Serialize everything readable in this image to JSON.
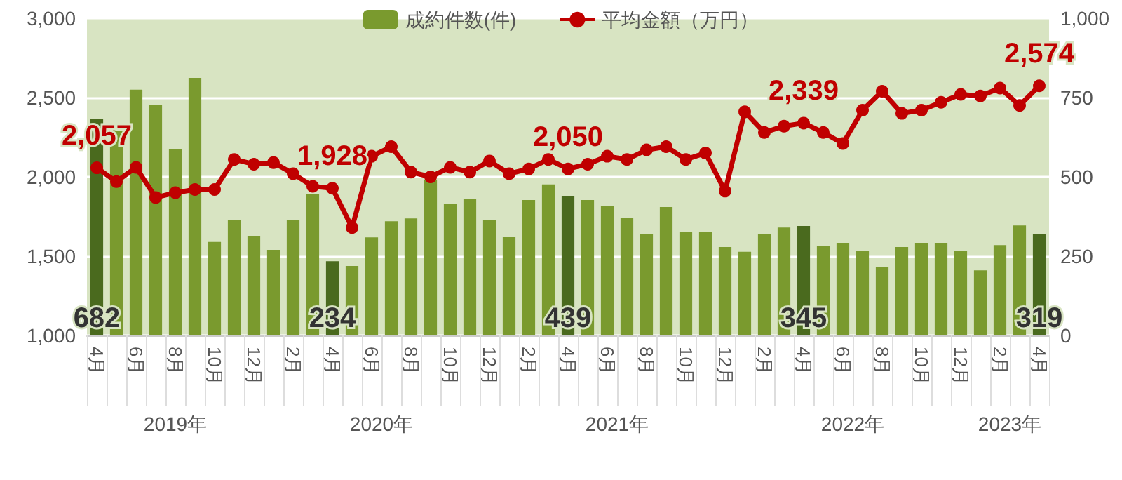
{
  "chart_data": {
    "type": "bar",
    "categories": [
      "4月",
      null,
      "6月",
      null,
      "8月",
      null,
      "10月",
      null,
      "12月",
      null,
      "2月",
      null,
      "4月",
      null,
      "6月",
      null,
      "8月",
      null,
      "10月",
      null,
      "12月",
      null,
      "2月",
      null,
      "4月",
      null,
      "6月",
      null,
      "8月",
      null,
      "10月",
      null,
      "12月",
      null,
      "2月",
      null,
      "4月",
      null,
      "6月",
      null,
      "8月",
      null,
      "10月",
      null,
      "12月",
      null,
      "2月",
      null,
      "4月"
    ],
    "series": [
      {
        "name": "成約件数(件)",
        "axis": "y2",
        "color": "#7a9a2e",
        "colors": [
          "#4a6a1e",
          "#7a9a2e",
          "#7a9a2e",
          "#7a9a2e",
          "#7a9a2e",
          "#7a9a2e",
          "#7a9a2e",
          "#7a9a2e",
          "#7a9a2e",
          "#7a9a2e",
          "#7a9a2e",
          "#7a9a2e",
          "#4a6a1e",
          "#7a9a2e",
          "#7a9a2e",
          "#7a9a2e",
          "#7a9a2e",
          "#7a9a2e",
          "#7a9a2e",
          "#7a9a2e",
          "#7a9a2e",
          "#7a9a2e",
          "#7a9a2e",
          "#7a9a2e",
          "#4a6a1e",
          "#7a9a2e",
          "#7a9a2e",
          "#7a9a2e",
          "#7a9a2e",
          "#7a9a2e",
          "#7a9a2e",
          "#7a9a2e",
          "#7a9a2e",
          "#7a9a2e",
          "#7a9a2e",
          "#7a9a2e",
          "#4a6a1e",
          "#7a9a2e",
          "#7a9a2e",
          "#7a9a2e",
          "#7a9a2e",
          "#7a9a2e",
          "#7a9a2e",
          "#7a9a2e",
          "#7a9a2e",
          "#7a9a2e",
          "#7a9a2e",
          "#7a9a2e",
          "#4a6a1e"
        ],
        "values": [
          682,
          660,
          775,
          728,
          588,
          812,
          295,
          365,
          312,
          270,
          363,
          445,
          234,
          219,
          309,
          360,
          369,
          490,
          414,
          431,
          365,
          310,
          427,
          476,
          439,
          427,
          408,
          371,
          321,
          405,
          325,
          325,
          279,
          264,
          321,
          340,
          345,
          281,
          292,
          266,
          217,
          279,
          292,
          292,
          267,
          205,
          285,
          347,
          319
        ],
        "value_labels": [
          "682",
          null,
          null,
          null,
          null,
          null,
          null,
          null,
          null,
          null,
          null,
          null,
          "234",
          null,
          null,
          null,
          null,
          null,
          null,
          null,
          null,
          null,
          null,
          null,
          "439",
          null,
          null,
          null,
          null,
          null,
          null,
          null,
          null,
          null,
          null,
          null,
          "345",
          null,
          null,
          null,
          null,
          null,
          null,
          null,
          null,
          null,
          null,
          null,
          "319"
        ]
      },
      {
        "name": "平均金額（万円）",
        "type": "line",
        "axis": "y",
        "color": "#c00000",
        "marker": "circle",
        "values": [
          2057,
          1970,
          2060,
          1870,
          1900,
          1920,
          1920,
          2110,
          2080,
          2090,
          2020,
          1940,
          1928,
          1680,
          2130,
          2190,
          2030,
          2000,
          2060,
          2030,
          2100,
          2020,
          2050,
          2110,
          2050,
          2080,
          2130,
          2110,
          2170,
          2190,
          2110,
          2150,
          1910,
          2410,
          2280,
          2320,
          2339,
          2280,
          2210,
          2420,
          2540,
          2400,
          2420,
          2470,
          2520,
          2510,
          2560,
          2450,
          2574
        ],
        "value_labels": [
          "2,057",
          null,
          null,
          null,
          null,
          null,
          null,
          null,
          null,
          null,
          null,
          null,
          "1,928",
          null,
          null,
          null,
          null,
          null,
          null,
          null,
          null,
          null,
          null,
          null,
          "2,050",
          null,
          null,
          null,
          null,
          null,
          null,
          null,
          null,
          null,
          null,
          null,
          "2,339",
          null,
          null,
          null,
          null,
          null,
          null,
          null,
          null,
          null,
          null,
          null,
          "2,574"
        ]
      }
    ],
    "ylim": [
      1000,
      3000
    ],
    "yticks": [
      {
        "value": 1000,
        "label": "1,000"
      },
      {
        "value": 1500,
        "label": "1,500"
      },
      {
        "value": 2000,
        "label": "2,000"
      },
      {
        "value": 2500,
        "label": "2,500"
      },
      {
        "value": 3000,
        "label": "3,000"
      }
    ],
    "y2lim": [
      0,
      1000
    ],
    "y2ticks": [
      0,
      250,
      500,
      750,
      {
        "value": 1000,
        "label": "1,000"
      }
    ],
    "annotations": [
      "2019年",
      "2020年",
      "2021年",
      "2022年",
      "2023年"
    ],
    "grid": "y",
    "legend": "top"
  }
}
